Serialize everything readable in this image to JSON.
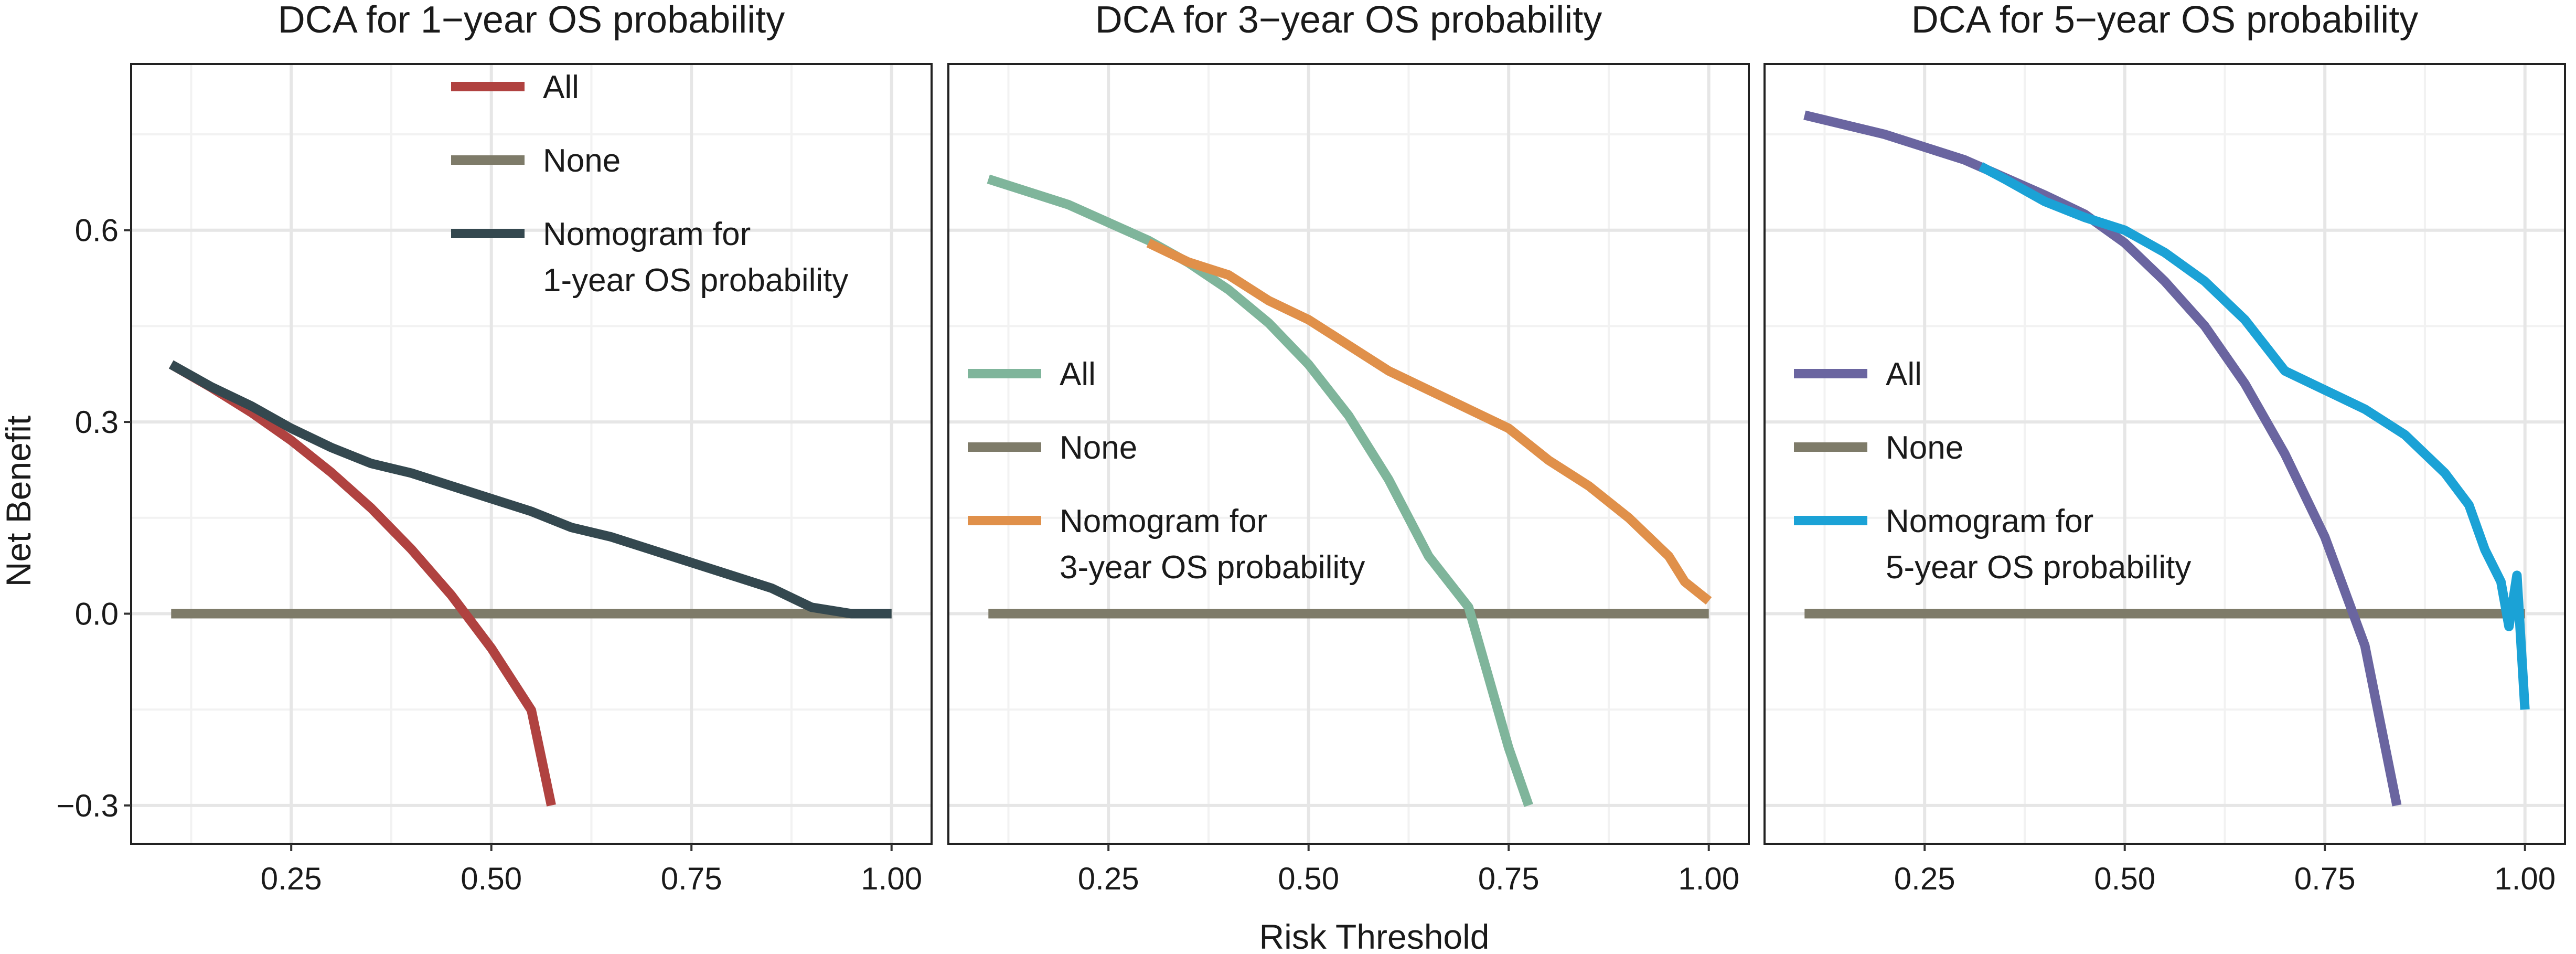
{
  "chart_data": [
    {
      "type": "line",
      "title": "DCA for 1−year OS probability",
      "xlabel": "Risk Threshold",
      "ylabel": "Net Benefit",
      "xlim": [
        0.05,
        1.05
      ],
      "ylim": [
        -0.36,
        0.86
      ],
      "x_ticks": [
        "0.25",
        "0.50",
        "0.75",
        "1.00"
      ],
      "y_ticks": [
        "−0.3",
        "0.0",
        "0.3",
        "0.6"
      ],
      "legend_position": "top-center",
      "series": [
        {
          "name": "All",
          "legend_label": [
            "All"
          ],
          "color": "#B04240",
          "x": [
            0.1,
            0.15,
            0.2,
            0.25,
            0.3,
            0.35,
            0.4,
            0.45,
            0.5,
            0.55,
            0.575
          ],
          "y": [
            0.39,
            0.354,
            0.315,
            0.271,
            0.221,
            0.165,
            0.101,
            0.029,
            -0.054,
            -0.151,
            -0.3
          ]
        },
        {
          "name": "None",
          "legend_label": [
            "None"
          ],
          "color": "#7E7B69",
          "x": [
            0.1,
            1.0
          ],
          "y": [
            0.0,
            0.0
          ]
        },
        {
          "name": "Nomogram for 1-year OS probability",
          "legend_label": [
            "Nomogram for",
            "1-year OS probability"
          ],
          "color": "#34484F",
          "x": [
            0.1,
            0.15,
            0.2,
            0.25,
            0.3,
            0.35,
            0.4,
            0.45,
            0.5,
            0.55,
            0.6,
            0.65,
            0.7,
            0.75,
            0.8,
            0.85,
            0.9,
            0.95,
            1.0
          ],
          "y": [
            0.39,
            0.355,
            0.325,
            0.29,
            0.26,
            0.235,
            0.22,
            0.2,
            0.18,
            0.16,
            0.135,
            0.12,
            0.1,
            0.08,
            0.06,
            0.04,
            0.01,
            0.0,
            0.0
          ]
        }
      ]
    },
    {
      "type": "line",
      "title": "DCA for 3−year OS probability",
      "xlabel": "Risk Threshold",
      "ylabel": "Net Benefit",
      "xlim": [
        0.05,
        1.05
      ],
      "ylim": [
        -0.36,
        0.86
      ],
      "x_ticks": [
        "0.25",
        "0.50",
        "0.75",
        "1.00"
      ],
      "y_ticks": [
        "−0.3",
        "0.0",
        "0.3",
        "0.6"
      ],
      "legend_position": "center-left",
      "series": [
        {
          "name": "All",
          "legend_label": [
            "All"
          ],
          "color": "#7FB59B",
          "x": [
            0.1,
            0.2,
            0.3,
            0.35,
            0.4,
            0.45,
            0.5,
            0.55,
            0.6,
            0.65,
            0.7,
            0.75,
            0.775
          ],
          "y": [
            0.68,
            0.64,
            0.584,
            0.549,
            0.507,
            0.455,
            0.39,
            0.31,
            0.21,
            0.09,
            0.01,
            -0.21,
            -0.3
          ]
        },
        {
          "name": "None",
          "legend_label": [
            "None"
          ],
          "color": "#7E7B69",
          "x": [
            0.1,
            1.0
          ],
          "y": [
            0.0,
            0.0
          ]
        },
        {
          "name": "Nomogram for 3-year OS probability",
          "legend_label": [
            "Nomogram for",
            "3-year OS probability"
          ],
          "color": "#E0904A",
          "x": [
            0.3,
            0.35,
            0.4,
            0.45,
            0.5,
            0.55,
            0.6,
            0.65,
            0.7,
            0.75,
            0.8,
            0.85,
            0.9,
            0.95,
            0.97,
            0.99,
            1.0
          ],
          "y": [
            0.58,
            0.55,
            0.53,
            0.49,
            0.46,
            0.42,
            0.38,
            0.35,
            0.32,
            0.29,
            0.24,
            0.2,
            0.15,
            0.09,
            0.05,
            0.03,
            0.02
          ]
        }
      ]
    },
    {
      "type": "line",
      "title": "DCA for 5−year OS probability",
      "xlabel": "Risk Threshold",
      "ylabel": "Net Benefit",
      "xlim": [
        0.05,
        1.05
      ],
      "ylim": [
        -0.36,
        0.86
      ],
      "x_ticks": [
        "0.25",
        "0.50",
        "0.75",
        "1.00"
      ],
      "y_ticks": [
        "−0.3",
        "0.0",
        "0.3",
        "0.6"
      ],
      "legend_position": "center-left",
      "series": [
        {
          "name": "All",
          "legend_label": [
            "All"
          ],
          "color": "#6A65A0",
          "x": [
            0.1,
            0.2,
            0.3,
            0.4,
            0.45,
            0.5,
            0.55,
            0.6,
            0.65,
            0.7,
            0.75,
            0.8,
            0.84
          ],
          "y": [
            0.78,
            0.75,
            0.71,
            0.655,
            0.625,
            0.58,
            0.52,
            0.45,
            0.36,
            0.25,
            0.12,
            -0.05,
            -0.3
          ]
        },
        {
          "name": "None",
          "legend_label": [
            "None"
          ],
          "color": "#7E7B69",
          "x": [
            0.1,
            1.0
          ],
          "y": [
            0.0,
            0.0
          ]
        },
        {
          "name": "Nomogram for 5-year OS probability",
          "legend_label": [
            "Nomogram for",
            "5-year OS probability"
          ],
          "color": "#1BA2D6",
          "x": [
            0.32,
            0.35,
            0.4,
            0.45,
            0.5,
            0.55,
            0.6,
            0.65,
            0.7,
            0.75,
            0.8,
            0.85,
            0.9,
            0.93,
            0.95,
            0.97,
            0.98,
            0.99,
            1.0
          ],
          "y": [
            0.7,
            0.68,
            0.645,
            0.62,
            0.6,
            0.565,
            0.52,
            0.46,
            0.38,
            0.35,
            0.32,
            0.28,
            0.22,
            0.17,
            0.1,
            0.05,
            -0.02,
            0.06,
            -0.15
          ]
        }
      ]
    }
  ]
}
